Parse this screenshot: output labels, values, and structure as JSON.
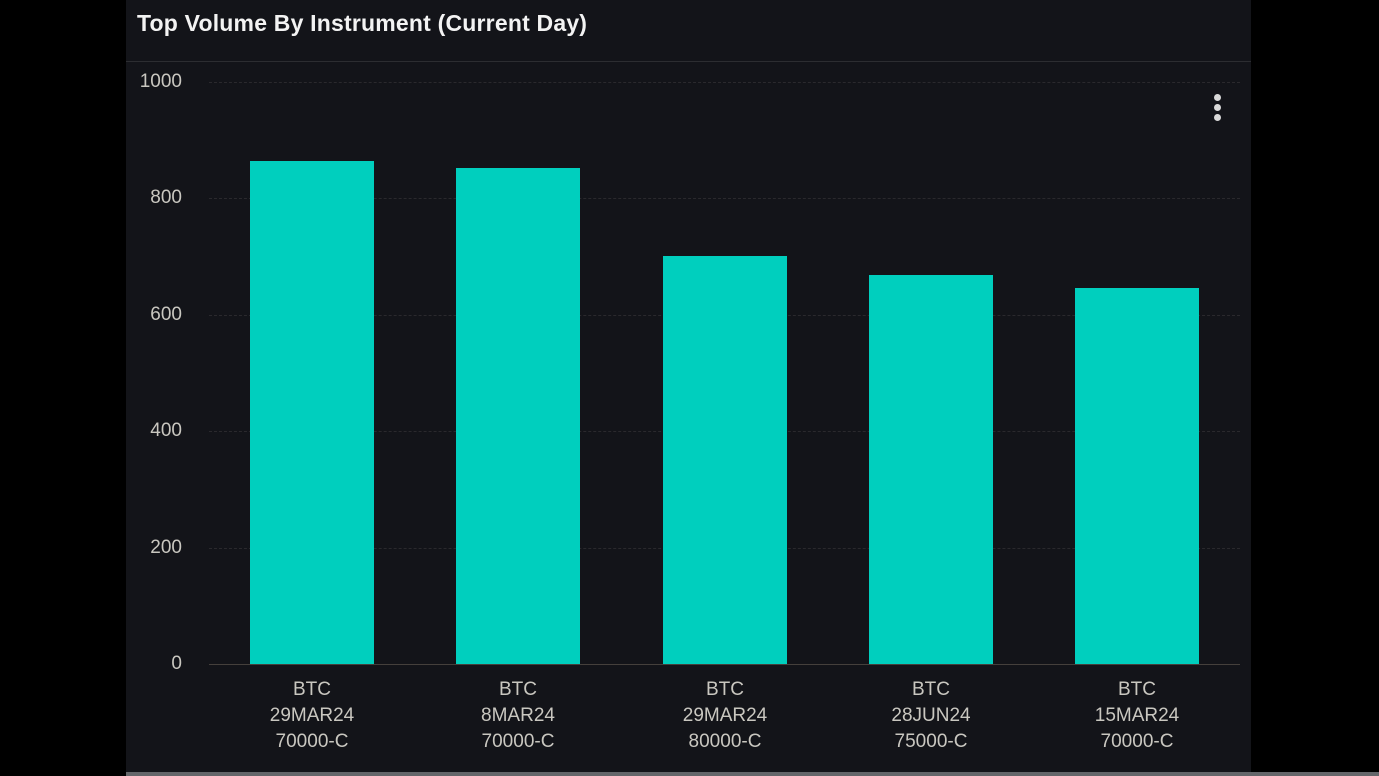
{
  "panel": {
    "title": "Top Volume By Instrument (Current Day)"
  },
  "icons": {
    "options": "kebab-menu-icon"
  },
  "chart_data": {
    "type": "bar",
    "title": "Top Volume By Instrument (Current Day)",
    "categories": [
      "BTC 29MAR24 70000-C",
      "BTC 8MAR24 70000-C",
      "BTC 29MAR24 80000-C",
      "BTC 28JUN24 75000-C",
      "BTC 15MAR24 70000-C"
    ],
    "category_lines": [
      [
        "BTC",
        "29MAR24",
        "70000-C"
      ],
      [
        "BTC",
        "8MAR24",
        "70000-C"
      ],
      [
        "BTC",
        "29MAR24",
        "80000-C"
      ],
      [
        "BTC",
        "28JUN24",
        "75000-C"
      ],
      [
        "BTC",
        "15MAR24",
        "70000-C"
      ]
    ],
    "values": [
      865,
      852,
      701,
      668,
      646
    ],
    "xlabel": "",
    "ylabel": "",
    "ylim": [
      0,
      1000
    ],
    "yticks": [
      0,
      200,
      400,
      600,
      800,
      1000
    ],
    "grid": "horizontal-dashed",
    "legend": "none",
    "bar_color": "#00CFBE"
  },
  "colors": {
    "page_background": "#000000",
    "panel_background": "#131419",
    "bar": "#00CFBE",
    "title_text": "#F3F3F3",
    "axis_text": "#C9C7C0",
    "gridline": "#2A292D",
    "axis_line": "#45403C",
    "divider": "#2C2D31",
    "scrollbar": "#64666A"
  }
}
